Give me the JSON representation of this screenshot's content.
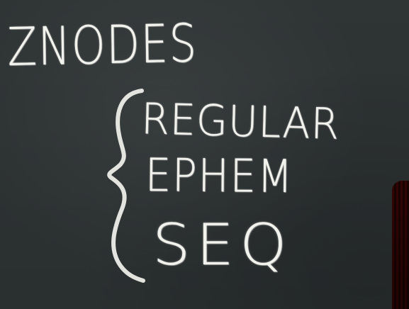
{
  "board": {
    "heading": "ZNODES",
    "items": [
      "REGULAR",
      "EPHEM",
      "SEQ"
    ]
  },
  "colors": {
    "chalkboard": "#2c3132",
    "chalk": "#f3f3ee",
    "edge_object": "#7a1f18"
  },
  "icons": {
    "brace": "curly-brace-icon"
  }
}
